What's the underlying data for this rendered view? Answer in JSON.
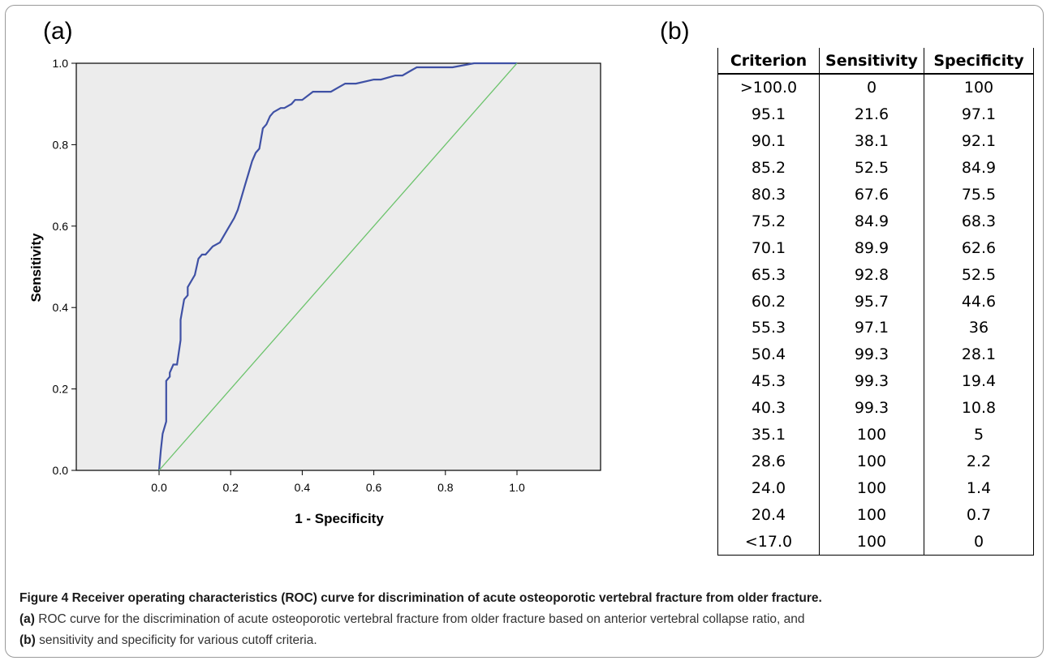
{
  "panels": {
    "a_label": "(a)",
    "b_label": "(b)"
  },
  "chart_data": {
    "type": "line",
    "xlabel": "1 - Specificity",
    "ylabel": "Sensitivity",
    "xlim": [
      0,
      1
    ],
    "ylim": [
      0,
      1
    ],
    "xticks": [
      "0.0",
      "0.2",
      "0.4",
      "0.6",
      "0.8",
      "1.0"
    ],
    "yticks": [
      "0.0",
      "0.2",
      "0.4",
      "0.6",
      "0.8",
      "1.0"
    ],
    "grid": false,
    "colors": {
      "curve": "#3f51a5",
      "reference": "#6cc36c",
      "plot_bg": "#ececec"
    },
    "series": [
      {
        "role": "roc-curve",
        "x": [
          0.0,
          0.005,
          0.01,
          0.02,
          0.02,
          0.03,
          0.03,
          0.04,
          0.05,
          0.06,
          0.06,
          0.07,
          0.08,
          0.08,
          0.1,
          0.11,
          0.12,
          0.13,
          0.15,
          0.17,
          0.19,
          0.21,
          0.22,
          0.23,
          0.24,
          0.25,
          0.26,
          0.27,
          0.28,
          0.29,
          0.3,
          0.31,
          0.32,
          0.34,
          0.35,
          0.37,
          0.38,
          0.4,
          0.43,
          0.46,
          0.48,
          0.5,
          0.52,
          0.55,
          0.6,
          0.62,
          0.66,
          0.68,
          0.7,
          0.72,
          0.78,
          0.82,
          0.88,
          0.92,
          1.0
        ],
        "y": [
          0.0,
          0.05,
          0.09,
          0.12,
          0.22,
          0.23,
          0.24,
          0.26,
          0.26,
          0.32,
          0.37,
          0.42,
          0.43,
          0.45,
          0.48,
          0.52,
          0.53,
          0.53,
          0.55,
          0.56,
          0.59,
          0.62,
          0.64,
          0.67,
          0.7,
          0.73,
          0.76,
          0.78,
          0.79,
          0.84,
          0.85,
          0.87,
          0.88,
          0.89,
          0.89,
          0.9,
          0.91,
          0.91,
          0.93,
          0.93,
          0.93,
          0.94,
          0.95,
          0.95,
          0.96,
          0.96,
          0.97,
          0.97,
          0.98,
          0.99,
          0.99,
          0.99,
          1.0,
          1.0,
          1.0
        ]
      },
      {
        "role": "reference-diagonal",
        "x": [
          0.0,
          1.0
        ],
        "y": [
          0.0,
          1.0
        ]
      }
    ]
  },
  "table": {
    "headers": [
      "Criterion",
      "Sensitivity",
      "Specificity"
    ],
    "rows": [
      [
        ">100.0",
        "0",
        "100"
      ],
      [
        "95.1",
        "21.6",
        "97.1"
      ],
      [
        "90.1",
        "38.1",
        "92.1"
      ],
      [
        "85.2",
        "52.5",
        "84.9"
      ],
      [
        "80.3",
        "67.6",
        "75.5"
      ],
      [
        "75.2",
        "84.9",
        "68.3"
      ],
      [
        "70.1",
        "89.9",
        "62.6"
      ],
      [
        "65.3",
        "92.8",
        "52.5"
      ],
      [
        "60.2",
        "95.7",
        "44.6"
      ],
      [
        "55.3",
        "97.1",
        "36"
      ],
      [
        "50.4",
        "99.3",
        "28.1"
      ],
      [
        "45.3",
        "99.3",
        "19.4"
      ],
      [
        "40.3",
        "99.3",
        "10.8"
      ],
      [
        "35.1",
        "100",
        "5"
      ],
      [
        "28.6",
        "100",
        "2.2"
      ],
      [
        "24.0",
        "100",
        "1.4"
      ],
      [
        "20.4",
        "100",
        "0.7"
      ],
      [
        "<17.0",
        "100",
        "0"
      ]
    ]
  },
  "caption": {
    "title": "Figure 4 Receiver operating characteristics (ROC) curve for discrimination of acute osteoporotic vertebral fracture from older fracture.",
    "label_a": "(a)",
    "text_a": " ROC curve for the discrimination of acute osteoporotic vertebral fracture from older fracture based on anterior vertebral collapse ratio, and",
    "label_b": "(b)",
    "text_b": " sensitivity and specificity for various cutoff criteria."
  }
}
